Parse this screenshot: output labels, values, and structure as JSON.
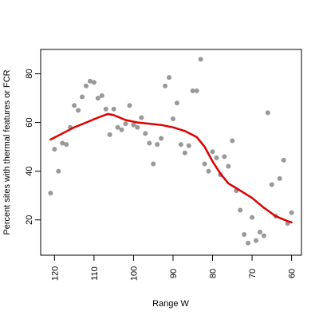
{
  "chart_data": {
    "type": "scatter",
    "title": "",
    "xlabel": "Range W",
    "ylabel": "Percent sites with thermal features or FCR",
    "xlim": [
      123.5,
      57.5
    ],
    "ylim": [
      5.5,
      90
    ],
    "x_reversed": true,
    "grid": false,
    "legend": "none",
    "xticks": [
      120,
      110,
      100,
      90,
      80,
      70,
      60
    ],
    "xtick_labels": [
      "120",
      "110",
      "100",
      "90",
      "80",
      "70",
      "60"
    ],
    "yticks": [
      20,
      40,
      60,
      80
    ],
    "ytick_labels": [
      "20",
      "40",
      "60",
      "80"
    ],
    "point_color": "#999999",
    "line_color": "#dd0000",
    "series": [
      {
        "kind": "points",
        "x": [
          121,
          120,
          119,
          118,
          117,
          116,
          115,
          114,
          113,
          112,
          111,
          110,
          109,
          108,
          107,
          106,
          105,
          104,
          103,
          102,
          101,
          100,
          99,
          98,
          97,
          96,
          95,
          94,
          93,
          92,
          91,
          90,
          89,
          88,
          87,
          86,
          85,
          84,
          83,
          82,
          81,
          80,
          79,
          78,
          77,
          76,
          75,
          74,
          73,
          72,
          71,
          70,
          69,
          68,
          67,
          66,
          65,
          64,
          63,
          62,
          61,
          60
        ],
        "y": [
          31,
          49,
          40,
          51.5,
          51,
          58,
          67,
          65,
          70.5,
          75,
          77,
          76.5,
          70,
          71,
          65.5,
          55,
          65.5,
          58,
          57,
          59.5,
          67,
          59,
          58,
          62,
          55.5,
          51.5,
          43,
          51,
          53.5,
          75,
          78.5,
          61.5,
          68,
          51,
          47.5,
          50.5,
          73,
          73,
          86,
          43,
          40,
          48,
          45.5,
          38.5,
          46,
          42,
          52.5,
          32,
          24,
          14,
          10.5,
          21,
          11.5,
          15,
          13.5,
          64,
          34.5,
          21.5,
          37,
          44.5,
          18.5,
          23
        ]
      },
      {
        "kind": "line",
        "x": [
          121,
          118,
          115,
          112,
          109,
          106.5,
          105,
          102,
          99,
          96,
          93,
          90,
          87,
          84,
          82,
          80,
          78,
          76,
          74,
          72,
          70,
          67,
          64,
          61,
          60
        ],
        "y": [
          53,
          55.5,
          58,
          60,
          62,
          63.5,
          63,
          61,
          60,
          59.5,
          59,
          58,
          56.5,
          54,
          50,
          44,
          39,
          35,
          33,
          31,
          29,
          25,
          21.5,
          19.5,
          19
        ]
      }
    ]
  }
}
